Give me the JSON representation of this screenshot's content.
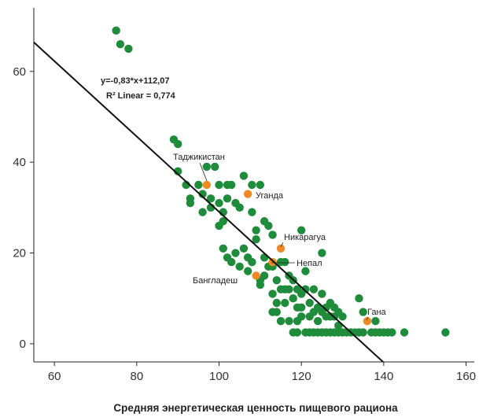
{
  "chart_data": {
    "type": "scatter",
    "xlabel": "Средняя энергетическая ценность пищевого рациона",
    "ylabel": "",
    "xlim": [
      55,
      162
    ],
    "ylim": [
      -4,
      74
    ],
    "xticks": [
      60,
      80,
      100,
      120,
      140,
      160
    ],
    "yticks": [
      0,
      20,
      40,
      60
    ],
    "grid": false,
    "colors": {
      "points": "#1e8c3a",
      "highlight": "#f08a24",
      "line": "#111111"
    },
    "equation": "y=-0,83*x+112,07",
    "r2": "R² Linear = 0,774",
    "trendline": {
      "slope": -0.83,
      "intercept": 112.07
    },
    "points": [
      [
        75,
        69
      ],
      [
        76,
        66
      ],
      [
        78,
        65
      ],
      [
        89,
        45
      ],
      [
        90,
        44
      ],
      [
        90,
        38
      ],
      [
        92,
        35
      ],
      [
        93,
        32
      ],
      [
        93,
        31
      ],
      [
        95,
        35
      ],
      [
        96,
        33
      ],
      [
        96,
        29
      ],
      [
        97,
        39
      ],
      [
        98,
        32
      ],
      [
        98,
        30
      ],
      [
        99,
        39
      ],
      [
        100,
        35
      ],
      [
        100,
        31
      ],
      [
        100,
        26
      ],
      [
        101,
        29
      ],
      [
        101,
        27
      ],
      [
        101,
        21
      ],
      [
        102,
        35
      ],
      [
        102,
        32
      ],
      [
        102,
        19
      ],
      [
        103,
        35
      ],
      [
        103,
        18
      ],
      [
        104,
        31
      ],
      [
        104,
        20
      ],
      [
        105,
        30
      ],
      [
        105,
        17
      ],
      [
        106,
        21
      ],
      [
        106,
        37
      ],
      [
        107,
        19
      ],
      [
        107,
        16
      ],
      [
        108,
        35
      ],
      [
        108,
        29
      ],
      [
        108,
        18
      ],
      [
        109,
        25
      ],
      [
        109,
        23
      ],
      [
        110,
        14
      ],
      [
        110,
        35
      ],
      [
        110,
        13
      ],
      [
        111,
        27
      ],
      [
        111,
        19
      ],
      [
        111,
        15
      ],
      [
        112,
        26
      ],
      [
        112,
        17
      ],
      [
        113,
        24
      ],
      [
        113,
        17
      ],
      [
        113,
        11
      ],
      [
        113,
        7
      ],
      [
        114,
        9
      ],
      [
        114,
        7
      ],
      [
        114,
        14
      ],
      [
        115,
        12
      ],
      [
        115,
        18
      ],
      [
        115,
        5
      ],
      [
        116,
        12
      ],
      [
        116,
        9
      ],
      [
        116,
        18
      ],
      [
        117,
        12
      ],
      [
        117,
        15
      ],
      [
        117,
        5
      ],
      [
        118,
        10
      ],
      [
        118,
        14
      ],
      [
        118,
        2.5
      ],
      [
        119,
        8
      ],
      [
        119,
        12
      ],
      [
        119,
        5
      ],
      [
        119,
        2.5
      ],
      [
        120,
        25
      ],
      [
        120,
        8
      ],
      [
        120,
        11
      ],
      [
        120,
        6
      ],
      [
        121,
        16
      ],
      [
        121,
        12
      ],
      [
        121,
        2.5
      ],
      [
        122,
        9
      ],
      [
        122,
        6
      ],
      [
        122,
        2.5
      ],
      [
        123,
        7
      ],
      [
        123,
        12
      ],
      [
        123,
        2.5
      ],
      [
        124,
        8
      ],
      [
        124,
        5
      ],
      [
        124,
        2.5
      ],
      [
        125,
        20
      ],
      [
        125,
        11
      ],
      [
        125,
        7
      ],
      [
        125,
        2.5
      ],
      [
        126,
        8
      ],
      [
        126,
        6
      ],
      [
        126,
        2.5
      ],
      [
        127,
        9
      ],
      [
        127,
        6
      ],
      [
        127,
        2.5
      ],
      [
        128,
        8
      ],
      [
        128,
        6
      ],
      [
        128,
        2.5
      ],
      [
        129,
        7
      ],
      [
        129,
        4
      ],
      [
        129,
        2.5
      ],
      [
        130,
        6
      ],
      [
        130,
        2.5
      ],
      [
        131,
        2.5
      ],
      [
        132,
        2.5
      ],
      [
        133,
        2.5
      ],
      [
        134,
        10
      ],
      [
        134,
        2.5
      ],
      [
        135,
        7
      ],
      [
        135,
        2.5
      ],
      [
        137,
        2.5
      ],
      [
        138,
        5
      ],
      [
        138,
        2.5
      ],
      [
        139,
        2.5
      ],
      [
        140,
        2.5
      ],
      [
        141,
        2.5
      ],
      [
        142,
        2.5
      ],
      [
        145,
        2.5
      ],
      [
        155,
        2.5
      ]
    ],
    "highlights": [
      {
        "label": "Таджикистан",
        "x": 97,
        "y": 35
      },
      {
        "label": "Уганда",
        "x": 107,
        "y": 33
      },
      {
        "label": "Никарагуа",
        "x": 115,
        "y": 21
      },
      {
        "label": "Непал",
        "x": 113,
        "y": 18
      },
      {
        "label": "Бангладеш",
        "x": 109,
        "y": 15
      },
      {
        "label": "Гана",
        "x": 136,
        "y": 5
      }
    ]
  }
}
